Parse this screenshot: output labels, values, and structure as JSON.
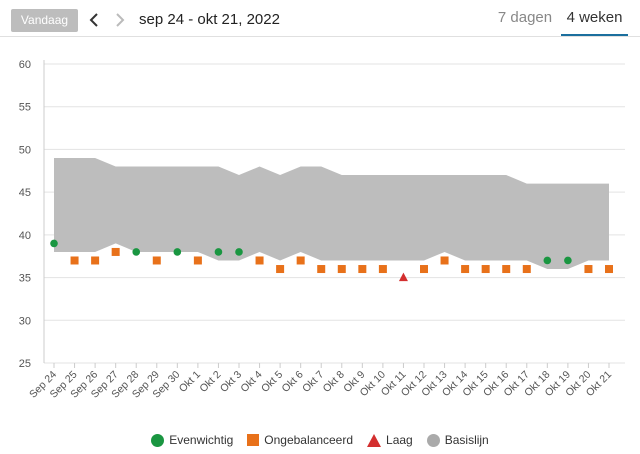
{
  "header": {
    "today_label": "Vandaag",
    "date_range": "sep 24 - okt 21, 2022",
    "tabs": [
      {
        "label": "7 dagen",
        "active": false
      },
      {
        "label": "4 weken",
        "active": true
      }
    ]
  },
  "chart_data": {
    "type": "scatter",
    "title": "",
    "xlabel": "",
    "ylabel": "",
    "ylim": [
      25,
      60
    ],
    "yticks": [
      25,
      30,
      35,
      40,
      45,
      50,
      55,
      60
    ],
    "grid": true,
    "categories": [
      "Sep 24",
      "Sep 25",
      "Sep 26",
      "Sep 27",
      "Sep 28",
      "Sep 29",
      "Sep 30",
      "Okt 1",
      "Okt 2",
      "Okt 3",
      "Okt 4",
      "Okt 5",
      "Okt 6",
      "Okt 7",
      "Okt 8",
      "Okt 9",
      "Okt 10",
      "Okt 11",
      "Okt 12",
      "Okt 13",
      "Okt 14",
      "Okt 15",
      "Okt 16",
      "Okt 17",
      "Okt 18",
      "Okt 19",
      "Okt 20",
      "Okt 21"
    ],
    "baseline": {
      "name": "Basislijn",
      "upper": [
        49,
        49,
        49,
        48,
        48,
        48,
        48,
        48,
        48,
        47,
        48,
        47,
        48,
        48,
        47,
        47,
        47,
        47,
        47,
        47,
        47,
        47,
        47,
        46,
        46,
        46,
        46,
        46
      ],
      "lower": [
        38,
        38,
        38,
        39,
        38,
        38,
        38,
        38,
        37,
        37,
        38,
        37,
        38,
        37,
        37,
        37,
        37,
        37,
        37,
        38,
        37,
        37,
        37,
        37,
        36,
        36,
        37,
        37
      ]
    },
    "series": [
      {
        "name": "Evenwichtig",
        "marker": "circle",
        "color": "#1a9641",
        "points": [
          {
            "x": "Sep 24",
            "y": 39
          },
          {
            "x": "Sep 28",
            "y": 38
          },
          {
            "x": "Sep 30",
            "y": 38
          },
          {
            "x": "Okt 2",
            "y": 38
          },
          {
            "x": "Okt 3",
            "y": 38
          },
          {
            "x": "Okt 18",
            "y": 37
          },
          {
            "x": "Okt 19",
            "y": 37
          }
        ]
      },
      {
        "name": "Ongebalanceerd",
        "marker": "square",
        "color": "#e8711a",
        "points": [
          {
            "x": "Sep 25",
            "y": 37
          },
          {
            "x": "Sep 26",
            "y": 37
          },
          {
            "x": "Sep 27",
            "y": 38
          },
          {
            "x": "Sep 29",
            "y": 37
          },
          {
            "x": "Okt 1",
            "y": 37
          },
          {
            "x": "Okt 4",
            "y": 37
          },
          {
            "x": "Okt 5",
            "y": 36
          },
          {
            "x": "Okt 6",
            "y": 37
          },
          {
            "x": "Okt 7",
            "y": 36
          },
          {
            "x": "Okt 8",
            "y": 36
          },
          {
            "x": "Okt 9",
            "y": 36
          },
          {
            "x": "Okt 10",
            "y": 36
          },
          {
            "x": "Okt 12",
            "y": 36
          },
          {
            "x": "Okt 13",
            "y": 37
          },
          {
            "x": "Okt 14",
            "y": 36
          },
          {
            "x": "Okt 15",
            "y": 36
          },
          {
            "x": "Okt 16",
            "y": 36
          },
          {
            "x": "Okt 17",
            "y": 36
          },
          {
            "x": "Okt 20",
            "y": 36
          },
          {
            "x": "Okt 21",
            "y": 36
          }
        ]
      },
      {
        "name": "Laag",
        "marker": "triangle",
        "color": "#d32f2f",
        "points": [
          {
            "x": "Okt 11",
            "y": 35
          }
        ]
      }
    ],
    "baseline_color": "#bdbdbd",
    "legend": {
      "placement": "bottom",
      "items": [
        {
          "name": "Evenwichtig",
          "marker": "circle",
          "color": "#1a9641"
        },
        {
          "name": "Ongebalanceerd",
          "marker": "square",
          "color": "#e8711a"
        },
        {
          "name": "Laag",
          "marker": "triangle",
          "color": "#d32f2f"
        },
        {
          "name": "Basislijn",
          "marker": "circle",
          "color": "#aaaaaa"
        }
      ]
    }
  }
}
